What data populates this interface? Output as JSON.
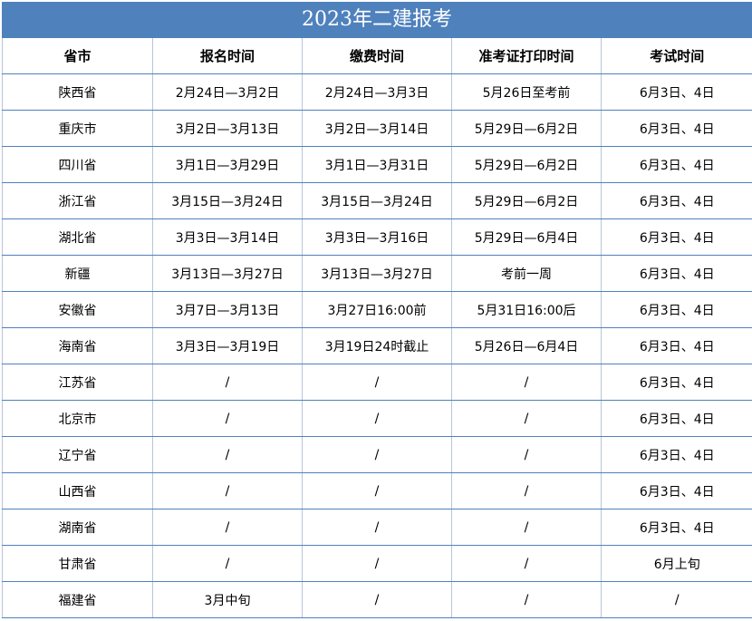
{
  "title": "2023年二建报考",
  "headers": [
    "省市",
    "报名时间",
    "缴费时间",
    "准考证打印时间",
    "考试时间"
  ],
  "rows": [
    [
      "陕西省",
      "2月24日—3月2日",
      "2月24日—3月3日",
      "5月26日至考前",
      "6月3日、4日"
    ],
    [
      "重庆市",
      "3月2日—3月13日",
      "3月2日—3月14日",
      "5月29日—6月2日",
      "6月3日、4日"
    ],
    [
      "四川省",
      "3月1日—3月29日",
      "3月1日—3月31日",
      "5月29日—6月2日",
      "6月3日、4日"
    ],
    [
      "浙江省",
      "3月15日—3月24日",
      "3月15日—3月24日",
      "5月29日—6月2日",
      "6月3日、4日"
    ],
    [
      "湖北省",
      "3月3日—3月14日",
      "3月3日—3月16日",
      "5月29日—6月4日",
      "6月3日、4日"
    ],
    [
      "新疆",
      "3月13日—3月27日",
      "3月13日—3月27日",
      "考前一周",
      "6月3日、4日"
    ],
    [
      "安徽省",
      "3月7日—3月13日",
      "3月27日16:00前",
      "5月31日16:00后",
      "6月3日、4日"
    ],
    [
      "海南省",
      "3月3日—3月19日",
      "3月19日24时截止",
      "5月26日—6月4日",
      "6月3日、4日"
    ],
    [
      "江苏省",
      "/",
      "/",
      "/",
      "6月3日、4日"
    ],
    [
      "北京市",
      "/",
      "/",
      "/",
      "6月3日、4日"
    ],
    [
      "辽宁省",
      "/",
      "/",
      "/",
      "6月3日、4日"
    ],
    [
      "山西省",
      "/",
      "/",
      "/",
      "6月3日、4日"
    ],
    [
      "湖南省",
      "/",
      "/",
      "/",
      "6月3日、4日"
    ],
    [
      "甘肃省",
      "/",
      "/",
      "/",
      "6月上旬"
    ],
    [
      "福建省",
      "3月中旬",
      "/",
      "/",
      "/"
    ]
  ],
  "colors": {
    "title_bg": "#4f81bd",
    "row_line": "#4f81bd",
    "col_line": "#b8c4dc"
  }
}
